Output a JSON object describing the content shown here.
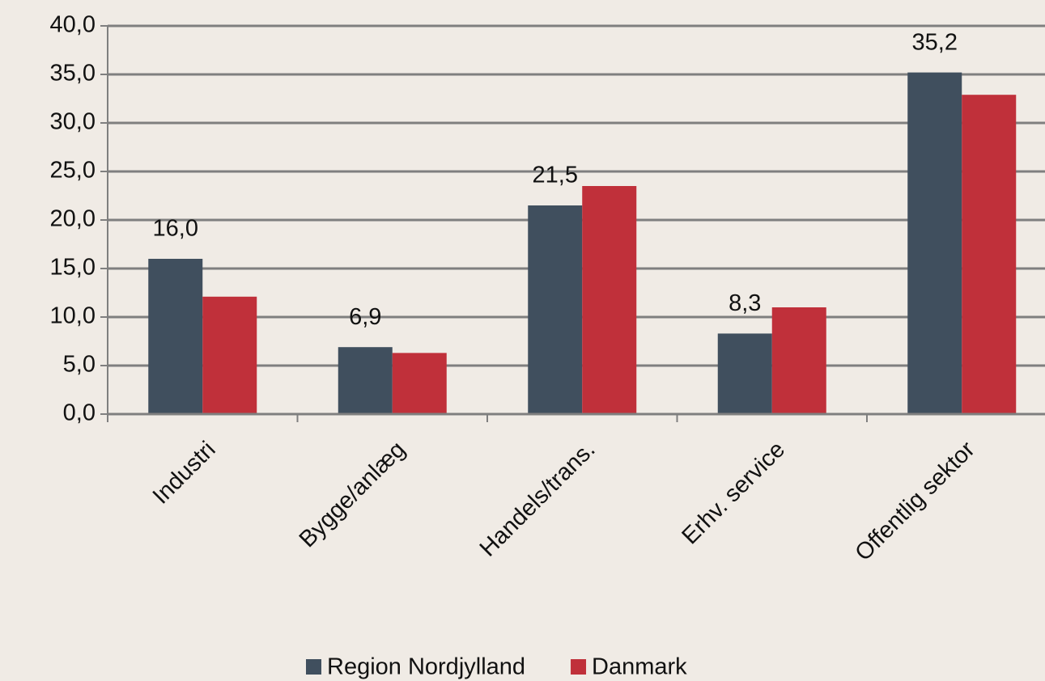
{
  "chart_data": {
    "type": "bar",
    "categories": [
      "Industri",
      "Bygge/anlæg",
      "Handels/trans.",
      "Erhv. service",
      "Offentlig sektor"
    ],
    "series": [
      {
        "name": "Region Nordjylland",
        "color": "#404f5e",
        "values": [
          16.0,
          6.9,
          21.5,
          8.3,
          35.2
        ],
        "value_labels": [
          "16,0",
          "6,9",
          "21,5",
          "8,3",
          "35,2"
        ]
      },
      {
        "name": "Danmark",
        "color": "#c0303a",
        "values": [
          12.1,
          6.3,
          23.5,
          11.0,
          32.9
        ]
      }
    ],
    "ylim": [
      0,
      40
    ],
    "yticks": [
      {
        "value": 0,
        "label": "0,0"
      },
      {
        "value": 5,
        "label": "5,0"
      },
      {
        "value": 10,
        "label": "10,0"
      },
      {
        "value": 15,
        "label": "15,0"
      },
      {
        "value": 20,
        "label": "20,0"
      },
      {
        "value": 25,
        "label": "25,0"
      },
      {
        "value": 30,
        "label": "30,0"
      },
      {
        "value": 35,
        "label": "35,0"
      },
      {
        "value": 40,
        "label": "40,0"
      }
    ],
    "grid": true,
    "legend": "bottom"
  }
}
